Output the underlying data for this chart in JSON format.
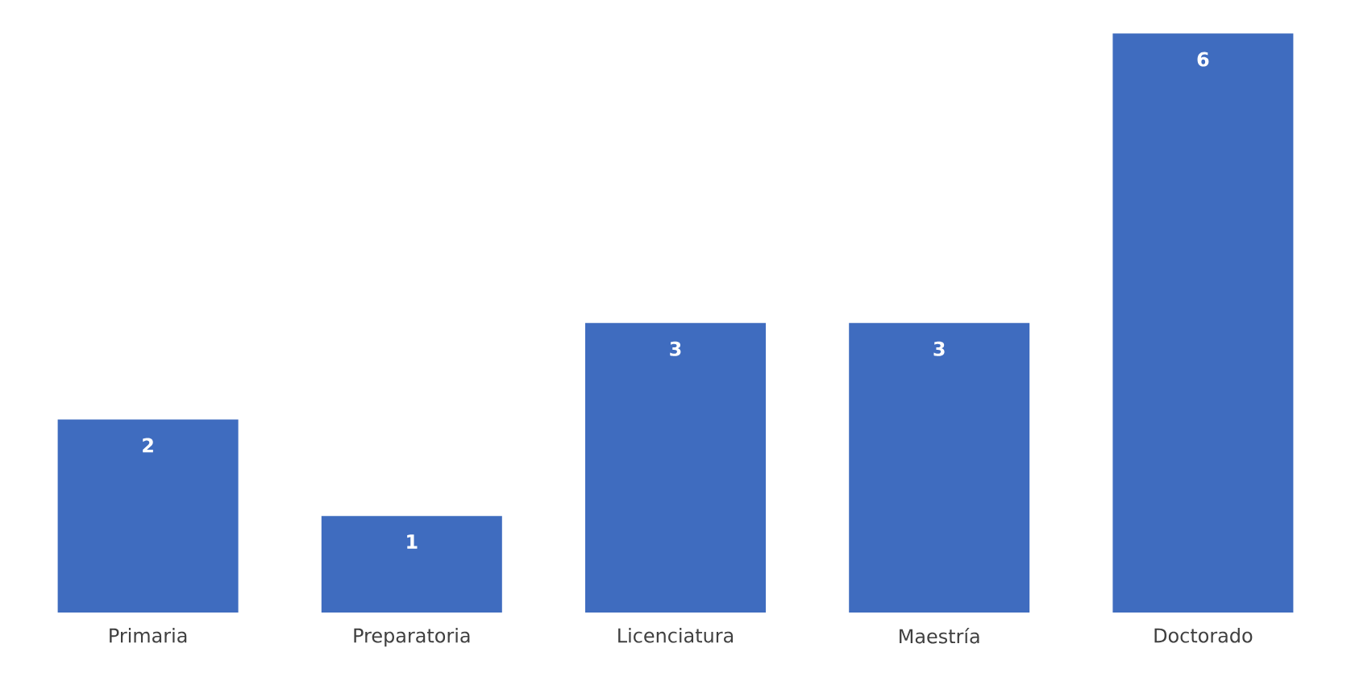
{
  "chart_data": {
    "type": "bar",
    "categories": [
      "Primaria",
      "Preparatoria",
      "Licenciatura",
      "Maestría",
      "Doctorado"
    ],
    "values": [
      2,
      1,
      3,
      3,
      6
    ],
    "color": "#3f6cbf",
    "data_labels": true
  }
}
